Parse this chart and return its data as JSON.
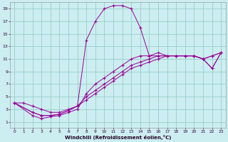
{
  "bg_color": "#cceef0",
  "grid_color": "#99cccc",
  "line_color": "#990099",
  "xlabel": "Windchill (Refroidissement éolien,°C)",
  "xlim": [
    -0.5,
    23.5
  ],
  "ylim": [
    0,
    20
  ],
  "xticks": [
    0,
    1,
    2,
    3,
    4,
    5,
    6,
    7,
    8,
    9,
    10,
    11,
    12,
    13,
    14,
    15,
    16,
    17,
    18,
    19,
    20,
    21,
    22,
    23
  ],
  "yticks": [
    1,
    3,
    5,
    7,
    9,
    11,
    13,
    15,
    17,
    19
  ],
  "series": [
    {
      "x": [
        0,
        1,
        2,
        3,
        4,
        5,
        6,
        7,
        8,
        9,
        10,
        11,
        12,
        13,
        14,
        15,
        16,
        17,
        18,
        19,
        20,
        21,
        22,
        23
      ],
      "y": [
        4,
        4,
        3.5,
        3,
        2.5,
        2.5,
        3,
        3.5,
        14,
        17,
        19,
        19.5,
        19.5,
        19,
        16,
        11.5,
        12,
        11.5,
        11.5,
        11.5,
        11.5,
        11,
        11.5,
        12
      ]
    },
    {
      "x": [
        0,
        2,
        3,
        4,
        5,
        6,
        7,
        8,
        9,
        10,
        11,
        12,
        13,
        14,
        15,
        16,
        17,
        18,
        19,
        20,
        21,
        22,
        23
      ],
      "y": [
        4,
        2,
        1.5,
        1.8,
        2,
        2.5,
        3,
        5.5,
        7,
        8,
        9,
        10,
        11,
        11.5,
        11.5,
        11.5,
        11.5,
        11.5,
        11.5,
        11.5,
        11,
        11.5,
        12
      ]
    },
    {
      "x": [
        0,
        2,
        3,
        4,
        5,
        6,
        7,
        8,
        9,
        10,
        11,
        12,
        13,
        14,
        15,
        16,
        17,
        18,
        19,
        20,
        21,
        22,
        23
      ],
      "y": [
        4,
        2.5,
        2,
        2,
        2.2,
        2.8,
        3.5,
        5,
        6,
        7,
        8,
        9,
        10,
        10.5,
        11,
        11.5,
        11.5,
        11.5,
        11.5,
        11.5,
        11,
        9.5,
        12
      ]
    },
    {
      "x": [
        0,
        2,
        3,
        4,
        5,
        6,
        7,
        8,
        9,
        10,
        11,
        12,
        13,
        14,
        15,
        16,
        17,
        18,
        19,
        20,
        21,
        22,
        23
      ],
      "y": [
        4,
        2.5,
        2,
        2,
        2.2,
        2.8,
        3.5,
        4.5,
        5.5,
        6.5,
        7.5,
        8.5,
        9.5,
        10,
        10.5,
        11,
        11.5,
        11.5,
        11.5,
        11.5,
        11,
        9.5,
        12
      ]
    }
  ]
}
